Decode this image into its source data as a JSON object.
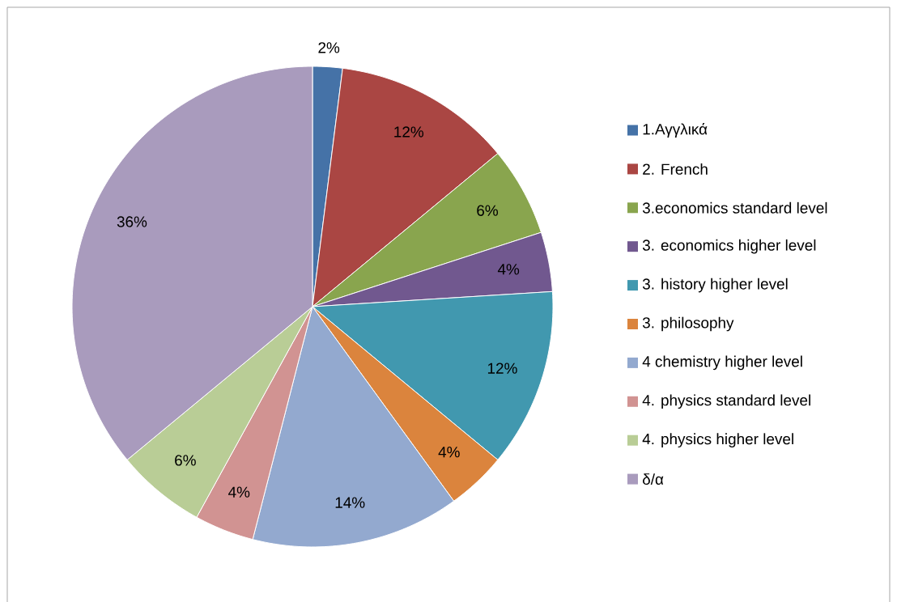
{
  "chart_data": {
    "type": "pie",
    "categories": [
      "1.Αγγλικά",
      "2. French",
      "3.economics standard level",
      "3. economics higher level",
      "3. history higher level",
      "3. philosophy",
      "4 chemistry higher level",
      "4. physics standard level",
      "4. physics higher level",
      "δ/α"
    ],
    "values": [
      2,
      12,
      6,
      4,
      12,
      4,
      14,
      4,
      6,
      36
    ],
    "colors": [
      "#4572a7",
      "#aa4643",
      "#89a54e",
      "#71588f",
      "#4198af",
      "#db843d",
      "#93a9cf",
      "#d19392",
      "#b9cd96",
      "#a99bbd"
    ],
    "value_labels": [
      "2%",
      "12%",
      "6%",
      "4%",
      "12%",
      "4%",
      "14%",
      "4%",
      "6%",
      "36%"
    ],
    "legend": "right"
  }
}
